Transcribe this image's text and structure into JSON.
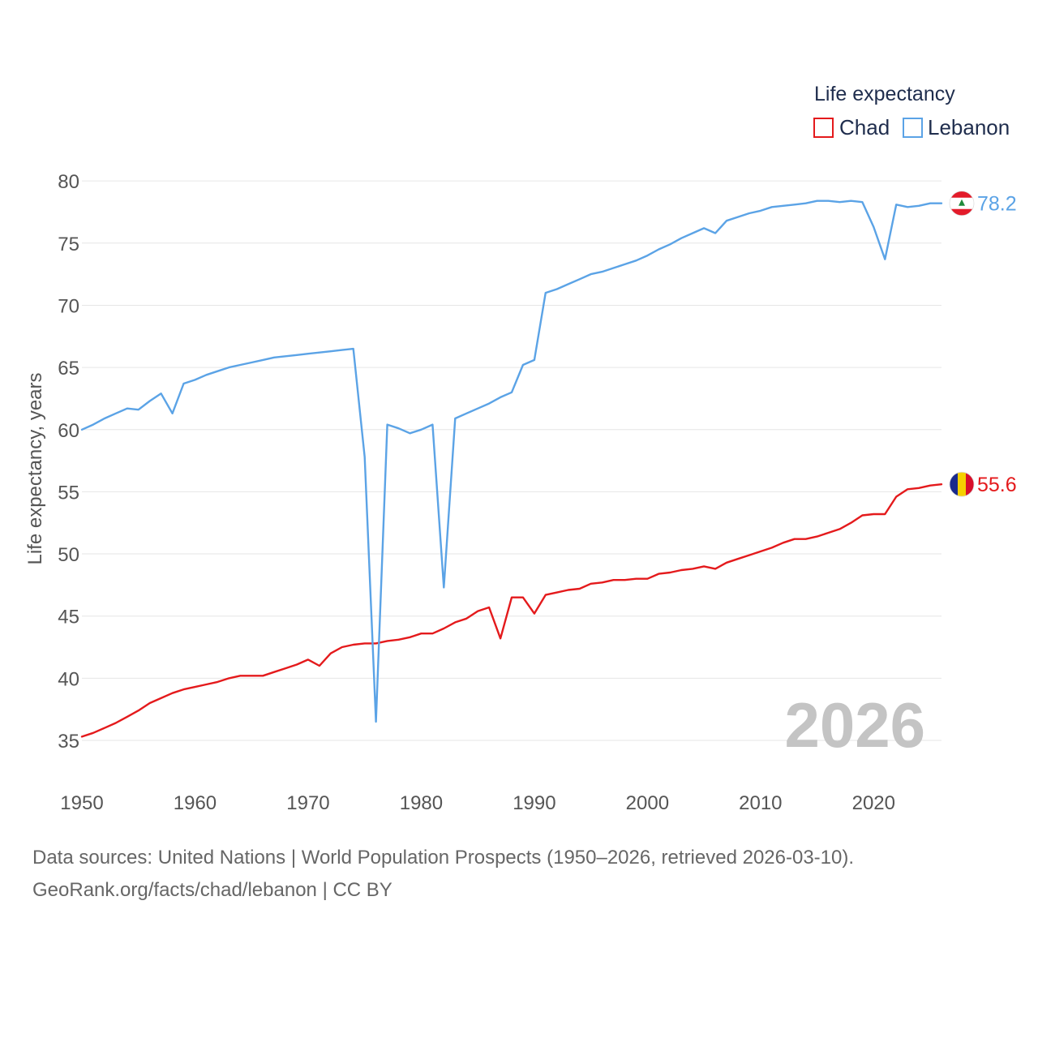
{
  "chart_data": {
    "type": "line",
    "title": "",
    "xlabel": "",
    "ylabel": "Life expectancy, years",
    "xlim": [
      1950,
      2026
    ],
    "ylim": [
      32,
      81
    ],
    "yticks": [
      "35",
      "40",
      "45",
      "50",
      "55",
      "60",
      "65",
      "70",
      "75",
      "80"
    ],
    "xticks": [
      "1950",
      "1960",
      "1970",
      "1980",
      "1990",
      "2000",
      "2010",
      "2020"
    ],
    "legend": {
      "title": "Life expectancy",
      "position": "top-right",
      "entries": [
        "Chad",
        "Lebanon"
      ]
    },
    "current_year": "2026",
    "x": [
      1950,
      1951,
      1952,
      1953,
      1954,
      1955,
      1956,
      1957,
      1958,
      1959,
      1960,
      1961,
      1962,
      1963,
      1964,
      1965,
      1966,
      1967,
      1968,
      1969,
      1970,
      1971,
      1972,
      1973,
      1974,
      1975,
      1976,
      1977,
      1978,
      1979,
      1980,
      1981,
      1982,
      1983,
      1984,
      1985,
      1986,
      1987,
      1988,
      1989,
      1990,
      1991,
      1992,
      1993,
      1994,
      1995,
      1996,
      1997,
      1998,
      1999,
      2000,
      2001,
      2002,
      2003,
      2004,
      2005,
      2006,
      2007,
      2008,
      2009,
      2010,
      2011,
      2012,
      2013,
      2014,
      2015,
      2016,
      2017,
      2018,
      2019,
      2020,
      2021,
      2022,
      2023,
      2024,
      2025,
      2026
    ],
    "series": [
      {
        "name": "Chad",
        "color": "#e41a1c",
        "end_label": "55.6",
        "flag": "chad-flag",
        "values": [
          35.3,
          35.6,
          36.0,
          36.4,
          36.9,
          37.4,
          38.0,
          38.4,
          38.8,
          39.1,
          39.3,
          39.5,
          39.7,
          40.0,
          40.2,
          40.2,
          40.2,
          40.5,
          40.8,
          41.1,
          41.5,
          41.0,
          42.0,
          42.5,
          42.7,
          42.8,
          42.8,
          43.0,
          43.1,
          43.3,
          43.6,
          43.6,
          44.0,
          44.5,
          44.8,
          45.4,
          45.7,
          43.2,
          46.5,
          46.5,
          45.2,
          46.7,
          46.9,
          47.1,
          47.2,
          47.6,
          47.7,
          47.9,
          47.9,
          48.0,
          48.0,
          48.4,
          48.5,
          48.7,
          48.8,
          49.0,
          48.8,
          49.3,
          49.6,
          49.9,
          50.2,
          50.5,
          50.9,
          51.2,
          51.2,
          51.4,
          51.7,
          52.0,
          52.5,
          53.1,
          53.2,
          53.2,
          54.6,
          55.2,
          55.3,
          55.5,
          55.6
        ]
      },
      {
        "name": "Lebanon",
        "color": "#5ba3e6",
        "end_label": "78.2",
        "flag": "lebanon-flag",
        "values": [
          60.0,
          60.4,
          60.9,
          61.3,
          61.7,
          61.6,
          62.3,
          62.9,
          61.3,
          63.7,
          64.0,
          64.4,
          64.7,
          65.0,
          65.2,
          65.4,
          65.6,
          65.8,
          65.9,
          66.0,
          66.1,
          66.2,
          66.3,
          66.4,
          66.5,
          57.8,
          36.5,
          60.4,
          60.1,
          59.7,
          60.0,
          60.4,
          47.3,
          60.9,
          61.3,
          61.7,
          62.1,
          62.6,
          63.0,
          65.2,
          65.6,
          71.0,
          71.3,
          71.7,
          72.1,
          72.5,
          72.7,
          73.0,
          73.3,
          73.6,
          74.0,
          74.5,
          74.9,
          75.4,
          75.8,
          76.2,
          75.8,
          76.8,
          77.1,
          77.4,
          77.6,
          77.9,
          78.0,
          78.1,
          78.2,
          78.4,
          78.4,
          78.3,
          78.4,
          78.3,
          76.3,
          73.7,
          78.1,
          77.9,
          78.0,
          78.2,
          78.2
        ]
      }
    ]
  },
  "footer": {
    "source_line_1": "Data sources: United Nations | World Population Prospects (1950–2026, retrieved 2026-03-10).",
    "source_line_2": "GeoRank.org/facts/chad/lebanon | CC BY"
  }
}
